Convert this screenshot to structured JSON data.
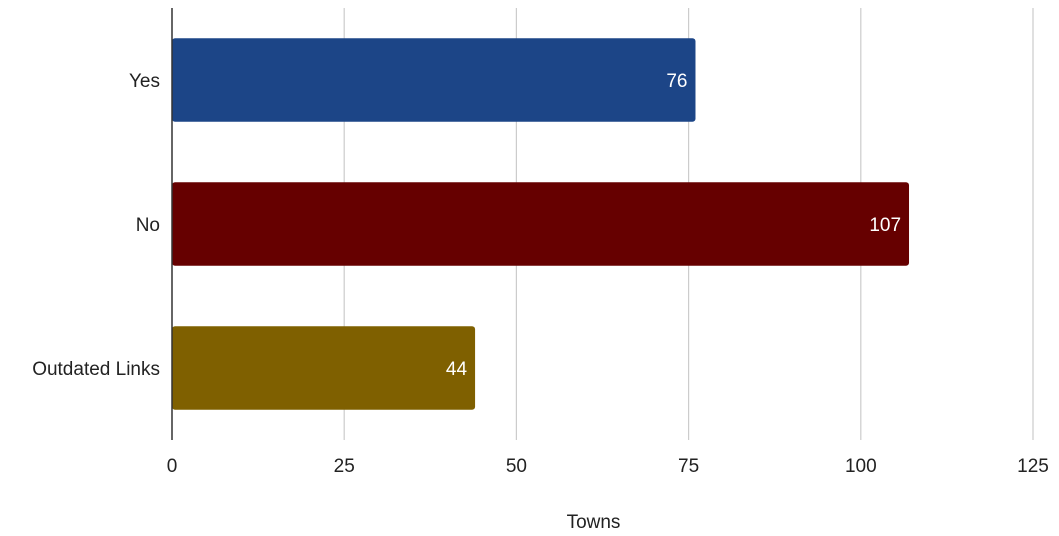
{
  "chart_data": {
    "type": "bar",
    "orientation": "horizontal",
    "categories": [
      "Yes",
      "No",
      "Outdated Links"
    ],
    "values": [
      76,
      107,
      44
    ],
    "data_labels": [
      "76",
      "107",
      "44"
    ],
    "colors": [
      "#1c4587",
      "#660000",
      "#7f6000"
    ],
    "xlabel": "Towns",
    "ylabel": "",
    "xlim": [
      0,
      125
    ],
    "xticks": [
      0,
      25,
      50,
      75,
      100,
      125
    ],
    "xtick_labels": [
      "0",
      "25",
      "50",
      "75",
      "100",
      "125"
    ],
    "grid": true
  }
}
